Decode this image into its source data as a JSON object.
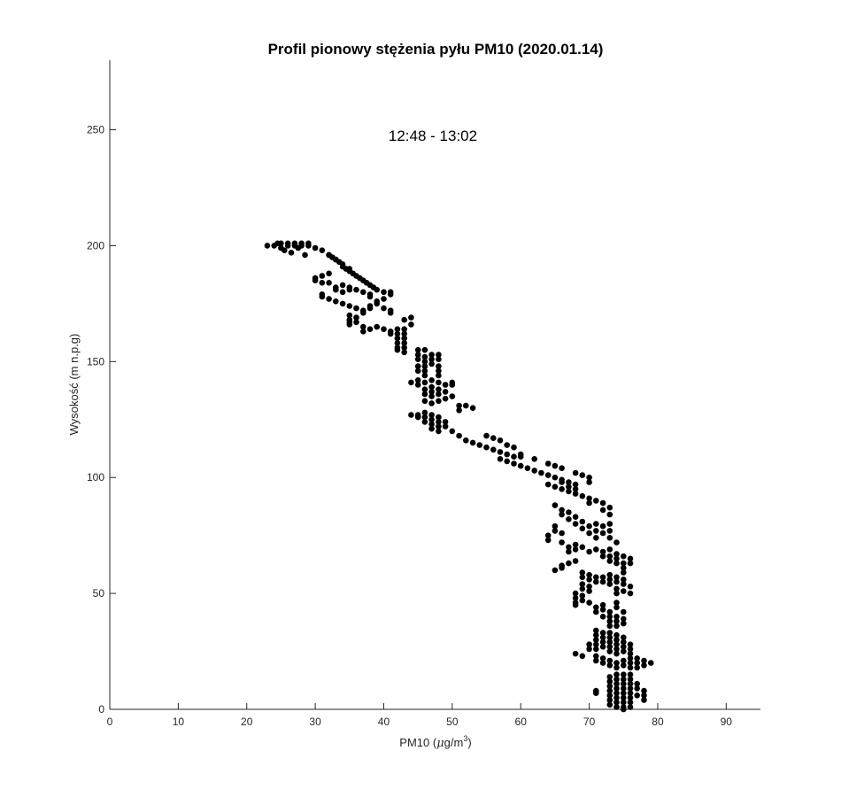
{
  "chart_data": {
    "type": "scatter",
    "title": "Profil pionowy stężenia pyłu PM10 (2020.01.14)",
    "annotation": "12:48 - 13:02",
    "xlabel": "PM10 (μg/m3)",
    "xlabel_parts": {
      "prefix": "PM10 (",
      "mu": "μ",
      "unit": "g/m",
      "sup": "3",
      "suffix": ")"
    },
    "ylabel": "Wysokość (m n.p.g)",
    "xlim": [
      0,
      95
    ],
    "ylim": [
      0,
      280
    ],
    "xticks": [
      0,
      10,
      20,
      30,
      40,
      50,
      60,
      70,
      80,
      90
    ],
    "yticks": [
      0,
      50,
      100,
      150,
      200,
      250
    ],
    "marker_color": "#000000",
    "grid": false,
    "points": [
      [
        23,
        200
      ],
      [
        24,
        200
      ],
      [
        24.5,
        201
      ],
      [
        25,
        199
      ],
      [
        25,
        201
      ],
      [
        25.5,
        198
      ],
      [
        26,
        200
      ],
      [
        26,
        201
      ],
      [
        26.5,
        197
      ],
      [
        27,
        200
      ],
      [
        27,
        201
      ],
      [
        27.5,
        199
      ],
      [
        28,
        200
      ],
      [
        28,
        201
      ],
      [
        28.5,
        196
      ],
      [
        29,
        200
      ],
      [
        29,
        201
      ],
      [
        30,
        199
      ],
      [
        31,
        198
      ],
      [
        32,
        196
      ],
      [
        32.5,
        195
      ],
      [
        33,
        194
      ],
      [
        33.5,
        193
      ],
      [
        34,
        191
      ],
      [
        34.5,
        190
      ],
      [
        35,
        189
      ],
      [
        35.5,
        188
      ],
      [
        36,
        187
      ],
      [
        36.5,
        186
      ],
      [
        37,
        185
      ],
      [
        37.5,
        184
      ],
      [
        38,
        183
      ],
      [
        38.5,
        182
      ],
      [
        39,
        181
      ],
      [
        40,
        180
      ],
      [
        41,
        180
      ],
      [
        41,
        179
      ],
      [
        32,
        196
      ],
      [
        33,
        194
      ],
      [
        34,
        192
      ],
      [
        35,
        190
      ],
      [
        30,
        186
      ],
      [
        30,
        185
      ],
      [
        31,
        187
      ],
      [
        31,
        184
      ],
      [
        32,
        188
      ],
      [
        32,
        184
      ],
      [
        33,
        182
      ],
      [
        33,
        181
      ],
      [
        34,
        183
      ],
      [
        34,
        180
      ],
      [
        35,
        182
      ],
      [
        35,
        181
      ],
      [
        36,
        181
      ],
      [
        37,
        180
      ],
      [
        38,
        179
      ],
      [
        38,
        178
      ],
      [
        31,
        179
      ],
      [
        31,
        178
      ],
      [
        32,
        177
      ],
      [
        33,
        176
      ],
      [
        34,
        175
      ],
      [
        35,
        174
      ],
      [
        36,
        173
      ],
      [
        37,
        172
      ],
      [
        37,
        171
      ],
      [
        38,
        174
      ],
      [
        38,
        173
      ],
      [
        39,
        176
      ],
      [
        39,
        175
      ],
      [
        40,
        177
      ],
      [
        40,
        173
      ],
      [
        41,
        172
      ],
      [
        41,
        171
      ],
      [
        35,
        170
      ],
      [
        35,
        168
      ],
      [
        35,
        167
      ],
      [
        35,
        166
      ],
      [
        36,
        169
      ],
      [
        36,
        167
      ],
      [
        37,
        165
      ],
      [
        37,
        163
      ],
      [
        38,
        164
      ],
      [
        39,
        165
      ],
      [
        40,
        164
      ],
      [
        41,
        163
      ],
      [
        41,
        162
      ],
      [
        42,
        164
      ],
      [
        42,
        162
      ],
      [
        42,
        160
      ],
      [
        42,
        158
      ],
      [
        42,
        156
      ],
      [
        42,
        155
      ],
      [
        43,
        164
      ],
      [
        43,
        162
      ],
      [
        43,
        160
      ],
      [
        43,
        158
      ],
      [
        43,
        156
      ],
      [
        43,
        154
      ],
      [
        43,
        168
      ],
      [
        44,
        169
      ],
      [
        44,
        166
      ],
      [
        45,
        155
      ],
      [
        45,
        153
      ],
      [
        45,
        151
      ],
      [
        45,
        148
      ],
      [
        45,
        146
      ],
      [
        46,
        155
      ],
      [
        46,
        152
      ],
      [
        46,
        150
      ],
      [
        46,
        148
      ],
      [
        46,
        146
      ],
      [
        46,
        144
      ],
      [
        47,
        153
      ],
      [
        47,
        151
      ],
      [
        47,
        149
      ],
      [
        48,
        153
      ],
      [
        48,
        151
      ],
      [
        48,
        148
      ],
      [
        48,
        146
      ],
      [
        44,
        141
      ],
      [
        45,
        142
      ],
      [
        45,
        140
      ],
      [
        46,
        141
      ],
      [
        46,
        138
      ],
      [
        46,
        136
      ],
      [
        46,
        133
      ],
      [
        47,
        142
      ],
      [
        47,
        139
      ],
      [
        47,
        137
      ],
      [
        47,
        135
      ],
      [
        47,
        132
      ],
      [
        48,
        144
      ],
      [
        48,
        141
      ],
      [
        48,
        138
      ],
      [
        48,
        136
      ],
      [
        48,
        133
      ],
      [
        49,
        140
      ],
      [
        49,
        137
      ],
      [
        49,
        134
      ],
      [
        50,
        141
      ],
      [
        50,
        140
      ],
      [
        50,
        135
      ],
      [
        51,
        131
      ],
      [
        51,
        129
      ],
      [
        52,
        131
      ],
      [
        53,
        130
      ],
      [
        44,
        127
      ],
      [
        45,
        127
      ],
      [
        45,
        126
      ],
      [
        46,
        128
      ],
      [
        46,
        126
      ],
      [
        46,
        124
      ],
      [
        47,
        127
      ],
      [
        47,
        125
      ],
      [
        47,
        123
      ],
      [
        47,
        121
      ],
      [
        48,
        126
      ],
      [
        48,
        124
      ],
      [
        48,
        122
      ],
      [
        48,
        120
      ],
      [
        49,
        124
      ],
      [
        49,
        122
      ],
      [
        50,
        120
      ],
      [
        51,
        118
      ],
      [
        52,
        116
      ],
      [
        53,
        115
      ],
      [
        54,
        114
      ],
      [
        55,
        113
      ],
      [
        56,
        112
      ],
      [
        57,
        111
      ],
      [
        57,
        108
      ],
      [
        58,
        110
      ],
      [
        58,
        107
      ],
      [
        59,
        109
      ],
      [
        59,
        106
      ],
      [
        60,
        109
      ],
      [
        60,
        105
      ],
      [
        61,
        104
      ],
      [
        62,
        103
      ],
      [
        63,
        102
      ],
      [
        64,
        101
      ],
      [
        65,
        100
      ],
      [
        66,
        99
      ],
      [
        67,
        98
      ],
      [
        67,
        96
      ],
      [
        68,
        97
      ],
      [
        55,
        118
      ],
      [
        56,
        117
      ],
      [
        57,
        116
      ],
      [
        58,
        114
      ],
      [
        59,
        113
      ],
      [
        60,
        110
      ],
      [
        62,
        108
      ],
      [
        64,
        106
      ],
      [
        65,
        105
      ],
      [
        66,
        104
      ],
      [
        68,
        102
      ],
      [
        69,
        101
      ],
      [
        70,
        100
      ],
      [
        70,
        98
      ],
      [
        64,
        97
      ],
      [
        65,
        96
      ],
      [
        66,
        98
      ],
      [
        66,
        95
      ],
      [
        67,
        94
      ],
      [
        68,
        95
      ],
      [
        68,
        93
      ],
      [
        69,
        92
      ],
      [
        70,
        91
      ],
      [
        70,
        89
      ],
      [
        71,
        90
      ],
      [
        72,
        89
      ],
      [
        72,
        86
      ],
      [
        73,
        87
      ],
      [
        73,
        84
      ],
      [
        65,
        88
      ],
      [
        66,
        86
      ],
      [
        66,
        84
      ],
      [
        67,
        85
      ],
      [
        67,
        82
      ],
      [
        68,
        83
      ],
      [
        68,
        80
      ],
      [
        69,
        81
      ],
      [
        69,
        78
      ],
      [
        70,
        79
      ],
      [
        70,
        76
      ],
      [
        71,
        80
      ],
      [
        71,
        77
      ],
      [
        71,
        74
      ],
      [
        72,
        79
      ],
      [
        72,
        76
      ],
      [
        73,
        80
      ],
      [
        73,
        77
      ],
      [
        73,
        74
      ],
      [
        74,
        72
      ],
      [
        64,
        75
      ],
      [
        64,
        73
      ],
      [
        65,
        79
      ],
      [
        65,
        77
      ],
      [
        66,
        76
      ],
      [
        66,
        72
      ],
      [
        67,
        70
      ],
      [
        67,
        68
      ],
      [
        68,
        71
      ],
      [
        68,
        69
      ],
      [
        69,
        70
      ],
      [
        70,
        68
      ],
      [
        71,
        69
      ],
      [
        72,
        68
      ],
      [
        72,
        66
      ],
      [
        73,
        69
      ],
      [
        73,
        66
      ],
      [
        73,
        64
      ],
      [
        74,
        67
      ],
      [
        74,
        65
      ],
      [
        74,
        63
      ],
      [
        75,
        66
      ],
      [
        75,
        63
      ],
      [
        75,
        61
      ],
      [
        76,
        65
      ],
      [
        76,
        63
      ],
      [
        65,
        60
      ],
      [
        66,
        61
      ],
      [
        66,
        62
      ],
      [
        67,
        63
      ],
      [
        68,
        64
      ],
      [
        69,
        59
      ],
      [
        69,
        57
      ],
      [
        69,
        54
      ],
      [
        69,
        52
      ],
      [
        70,
        58
      ],
      [
        70,
        56
      ],
      [
        70,
        53
      ],
      [
        70,
        51
      ],
      [
        71,
        57
      ],
      [
        71,
        55
      ],
      [
        72,
        57
      ],
      [
        72,
        55
      ],
      [
        73,
        58
      ],
      [
        73,
        56
      ],
      [
        73,
        54
      ],
      [
        74,
        57
      ],
      [
        74,
        55
      ],
      [
        74,
        52
      ],
      [
        74,
        50
      ],
      [
        75,
        59
      ],
      [
        75,
        56
      ],
      [
        75,
        54
      ],
      [
        75,
        51
      ],
      [
        76,
        53
      ],
      [
        76,
        50
      ],
      [
        68,
        50
      ],
      [
        68,
        48
      ],
      [
        68,
        46
      ],
      [
        68,
        45
      ],
      [
        69,
        49
      ],
      [
        69,
        47
      ],
      [
        70,
        46
      ],
      [
        71,
        44
      ],
      [
        71,
        42
      ],
      [
        72,
        45
      ],
      [
        72,
        43
      ],
      [
        72,
        40
      ],
      [
        73,
        42
      ],
      [
        73,
        40
      ],
      [
        73,
        38
      ],
      [
        73,
        36
      ],
      [
        74,
        46
      ],
      [
        74,
        44
      ],
      [
        74,
        40
      ],
      [
        74,
        38
      ],
      [
        74,
        36
      ],
      [
        75,
        42
      ],
      [
        75,
        39
      ],
      [
        75,
        37
      ],
      [
        71,
        34
      ],
      [
        71,
        32
      ],
      [
        71,
        30
      ],
      [
        71,
        28
      ],
      [
        71,
        26
      ],
      [
        72,
        33
      ],
      [
        72,
        31
      ],
      [
        72,
        29
      ],
      [
        72,
        27
      ],
      [
        73,
        33
      ],
      [
        73,
        31
      ],
      [
        73,
        29
      ],
      [
        73,
        27
      ],
      [
        73,
        25
      ],
      [
        74,
        32
      ],
      [
        74,
        30
      ],
      [
        74,
        28
      ],
      [
        74,
        26
      ],
      [
        74,
        24
      ],
      [
        75,
        31
      ],
      [
        75,
        29
      ],
      [
        75,
        27
      ],
      [
        75,
        25
      ],
      [
        76,
        28
      ],
      [
        76,
        26
      ],
      [
        76,
        24
      ],
      [
        76,
        22
      ],
      [
        68,
        24
      ],
      [
        69,
        23
      ],
      [
        70,
        28
      ],
      [
        70,
        26
      ],
      [
        71,
        23
      ],
      [
        71,
        21
      ],
      [
        72,
        22
      ],
      [
        72,
        20
      ],
      [
        73,
        21
      ],
      [
        73,
        19
      ],
      [
        74,
        20
      ],
      [
        74,
        18
      ],
      [
        75,
        21
      ],
      [
        75,
        19
      ],
      [
        76,
        20
      ],
      [
        76,
        18
      ],
      [
        77,
        22
      ],
      [
        77,
        20
      ],
      [
        77,
        18
      ],
      [
        78,
        21
      ],
      [
        78,
        19
      ],
      [
        79,
        20
      ],
      [
        71,
        8
      ],
      [
        71,
        7
      ],
      [
        73,
        14
      ],
      [
        73,
        12
      ],
      [
        73,
        10
      ],
      [
        73,
        8
      ],
      [
        73,
        6
      ],
      [
        73,
        4
      ],
      [
        73,
        2
      ],
      [
        74,
        15
      ],
      [
        74,
        13
      ],
      [
        74,
        11
      ],
      [
        74,
        9
      ],
      [
        74,
        7
      ],
      [
        74,
        5
      ],
      [
        74,
        3
      ],
      [
        74,
        1
      ],
      [
        75,
        15
      ],
      [
        75,
        13
      ],
      [
        75,
        11
      ],
      [
        75,
        9
      ],
      [
        75,
        7
      ],
      [
        75,
        5
      ],
      [
        75,
        3
      ],
      [
        75,
        1
      ],
      [
        75,
        0
      ],
      [
        76,
        15
      ],
      [
        76,
        13
      ],
      [
        76,
        11
      ],
      [
        76,
        9
      ],
      [
        76,
        7
      ],
      [
        76,
        5
      ],
      [
        76,
        3
      ],
      [
        76,
        1
      ],
      [
        77,
        11
      ],
      [
        77,
        9
      ],
      [
        77,
        6
      ],
      [
        78,
        8
      ],
      [
        78,
        6
      ],
      [
        78,
        4
      ]
    ]
  }
}
